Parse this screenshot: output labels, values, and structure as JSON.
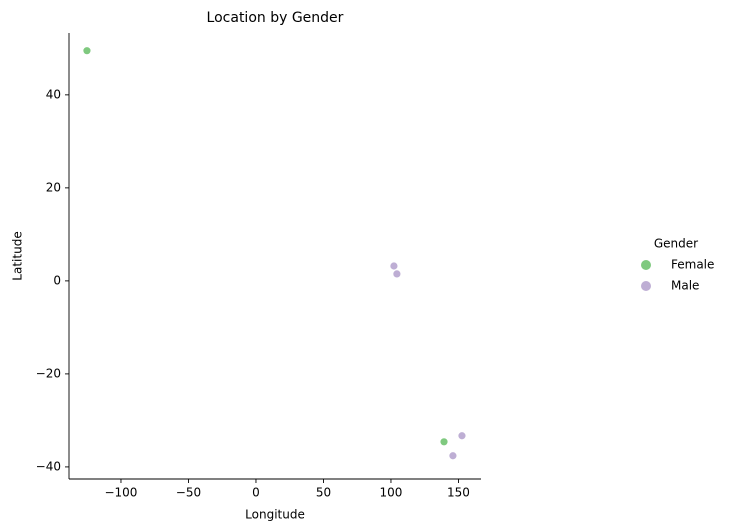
{
  "chart_data": {
    "type": "scatter",
    "title": "Location by Gender",
    "x_label": "Longitude",
    "y_label": "Latitude",
    "legend_title": "Gender",
    "legend_position": "right",
    "grid": false,
    "series": [
      {
        "name": "Female",
        "color": "#7fc97f",
        "x": [
          -125.2,
          139.3
        ],
        "values": [
          49.5,
          -34.6
        ]
      },
      {
        "name": "Male",
        "color": "#beaed4",
        "x": [
          102.2,
          104.4,
          145.9,
          152.6
        ],
        "values": [
          3.2,
          1.5,
          -37.6,
          -33.3
        ]
      }
    ],
    "xlim": [
      -138.5,
      166.7
    ],
    "xticks": [
      {
        "value": -100,
        "label": "−100"
      },
      {
        "value": -50,
        "label": "−50"
      },
      0,
      50,
      100,
      150
    ],
    "ylim": [
      -42.6,
      53.3
    ],
    "yticks": [
      {
        "value": -40,
        "label": "−40"
      },
      {
        "value": -20,
        "label": "−20"
      },
      0,
      20,
      40
    ]
  }
}
